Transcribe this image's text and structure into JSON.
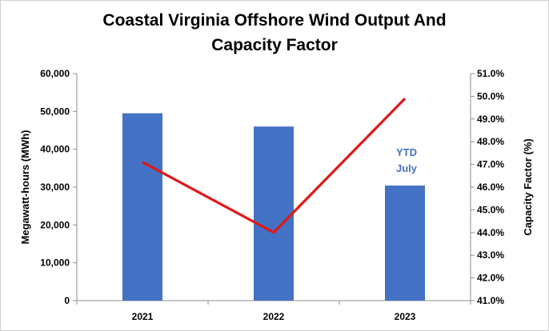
{
  "chart_data": {
    "type": "bar",
    "title_lines": [
      "Coastal Virginia Offshore Wind Output And",
      "Capacity Factor"
    ],
    "categories": [
      "2021",
      "2022",
      "2023"
    ],
    "series": [
      {
        "name": "",
        "type": "bar",
        "axis": "left",
        "values": [
          49500,
          46000,
          30400
        ],
        "color": "#4472c4"
      },
      {
        "name": "",
        "type": "line",
        "axis": "right",
        "values": [
          47.1,
          44.0,
          49.9
        ],
        "color": "#e01818"
      }
    ],
    "ylabel": "Megawatt-hours (MWh)",
    "y2label": "Capacity Factor (%)",
    "ylim": [
      0,
      60000
    ],
    "y2lim": [
      41.0,
      51.0
    ],
    "yticks": [
      "0",
      "10,000",
      "20,000",
      "30,000",
      "40,000",
      "50,000",
      "60,000"
    ],
    "y2ticks": [
      "41.0%",
      "42.0%",
      "43.0%",
      "44.0%",
      "45.0%",
      "46.0%",
      "47.0%",
      "48.0%",
      "49.0%",
      "50.0%",
      "51.0%"
    ],
    "annotations": [
      {
        "category": "2023",
        "lines": [
          "YTD",
          "July"
        ]
      }
    ],
    "grid": false,
    "legend": "none"
  }
}
